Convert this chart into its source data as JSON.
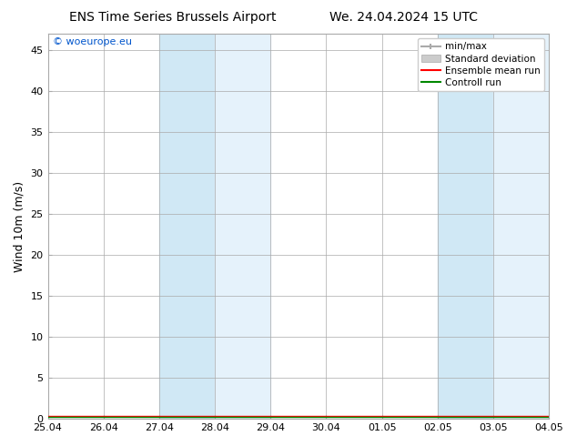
{
  "title_left": "ENS Time Series Brussels Airport",
  "title_right": "We. 24.04.2024 15 UTC",
  "ylabel": "Wind 10m (m/s)",
  "watermark": "© woeurope.eu",
  "ylim": [
    0,
    47
  ],
  "yticks": [
    0,
    5,
    10,
    15,
    20,
    25,
    30,
    35,
    40,
    45
  ],
  "x_start": 0,
  "x_end": 9.0,
  "xtick_labels": [
    "25.04",
    "26.04",
    "27.04",
    "28.04",
    "29.04",
    "30.04",
    "01.05",
    "02.05",
    "03.05",
    "04.05"
  ],
  "xtick_positions": [
    0,
    1,
    2,
    3,
    4,
    5,
    6,
    7,
    8,
    9
  ],
  "shaded_bands": [
    [
      2,
      3
    ],
    [
      3,
      4
    ],
    [
      7,
      8
    ],
    [
      8,
      9
    ]
  ],
  "shade_color_dark": "#d0e8f5",
  "shade_color_light": "#e5f2fb",
  "bg_color": "#ffffff",
  "ensemble_mean_color": "#ff0000",
  "control_run_color": "#008800",
  "minmax_color": "#aaaaaa",
  "stddev_color": "#cccccc",
  "legend_labels": [
    "min/max",
    "Standard deviation",
    "Ensemble mean run",
    "Controll run"
  ],
  "title_fontsize": 10,
  "axis_fontsize": 9,
  "tick_fontsize": 8,
  "watermark_fontsize": 8
}
